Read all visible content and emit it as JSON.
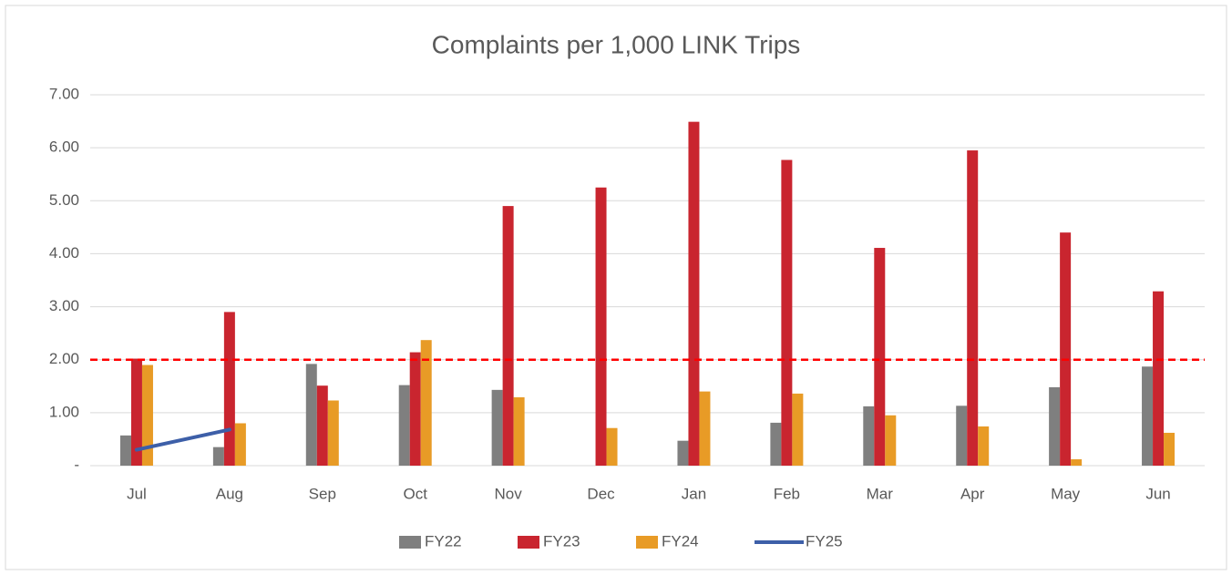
{
  "chart_data": {
    "type": "bar",
    "title": "Complaints per 1,000 LINK Trips",
    "categories": [
      "Jul",
      "Aug",
      "Sep",
      "Oct",
      "Nov",
      "Dec",
      "Jan",
      "Feb",
      "Mar",
      "Apr",
      "May",
      "Jun"
    ],
    "series": [
      {
        "name": "FY22",
        "color": "#7f7f7f",
        "type": "bar",
        "values": [
          0.57,
          0.35,
          1.92,
          1.52,
          1.43,
          null,
          0.47,
          0.81,
          1.12,
          1.13,
          1.48,
          1.87
        ]
      },
      {
        "name": "FY23",
        "color": "#c9252f",
        "type": "bar",
        "values": [
          2.02,
          2.9,
          1.51,
          2.14,
          4.9,
          5.25,
          6.49,
          5.77,
          4.11,
          5.95,
          4.4,
          3.29
        ]
      },
      {
        "name": "FY24",
        "color": "#e89b26",
        "type": "bar",
        "values": [
          1.9,
          0.8,
          1.23,
          2.37,
          1.29,
          0.71,
          1.4,
          1.36,
          0.95,
          0.74,
          0.12,
          0.62
        ]
      },
      {
        "name": "FY25",
        "color": "#3d5fa8",
        "type": "line",
        "values": [
          0.3,
          0.68,
          null,
          null,
          null,
          null,
          null,
          null,
          null,
          null,
          null,
          null
        ]
      }
    ],
    "reference_line": {
      "value": 2,
      "color": "#ff0000"
    },
    "ylim": [
      0,
      7
    ],
    "yticks": [
      {
        "value": 0,
        "label": "-"
      },
      {
        "value": 1,
        "label": "1.00"
      },
      {
        "value": 2,
        "label": "2.00"
      },
      {
        "value": 3,
        "label": "3.00"
      },
      {
        "value": 4,
        "label": "4.00"
      },
      {
        "value": 5,
        "label": "5.00"
      },
      {
        "value": 6,
        "label": "6.00"
      },
      {
        "value": 7,
        "label": "7.00"
      }
    ],
    "grid": true,
    "legend": "bottom"
  }
}
